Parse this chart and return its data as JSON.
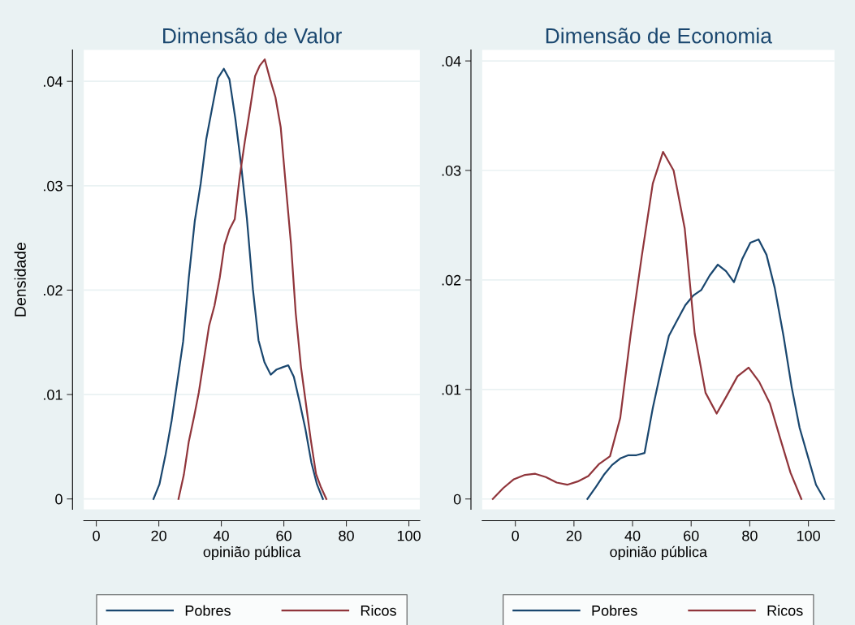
{
  "chart_data": [
    {
      "type": "line",
      "title": "Dimensão de Valor",
      "xlabel": "opinião pública",
      "ylabel": "Densidade",
      "xlim": [
        -4,
        103.5
      ],
      "ylim": [
        -0.001,
        0.043
      ],
      "xticks": [
        0,
        20,
        40,
        60,
        80,
        100
      ],
      "yticks": [
        {
          "value": 0,
          "label": "0"
        },
        {
          "value": 0.01,
          "label": ".01"
        },
        {
          "value": 0.02,
          "label": ".02"
        },
        {
          "value": 0.03,
          "label": ".03"
        },
        {
          "value": 0.04,
          "label": ".04"
        }
      ],
      "grid": "y",
      "legend": "bottom",
      "series": [
        {
          "name": "Pobres",
          "color": "#1a476f",
          "x": [
            18.3,
            20.2,
            22.2,
            24.1,
            25.9,
            27.8,
            29.6,
            31.5,
            33.4,
            35.2,
            37.1,
            38.9,
            40.8,
            42.6,
            44.5,
            46.3,
            48.2,
            50.1,
            51.9,
            53.8,
            55.8,
            57.7,
            59.5,
            61.4,
            63.2,
            65.1,
            66.9,
            68.8,
            70.6,
            72.5
          ],
          "values": [
            0,
            0.0014,
            0.0043,
            0.0075,
            0.0112,
            0.0151,
            0.0212,
            0.0266,
            0.0302,
            0.0345,
            0.0375,
            0.0403,
            0.0412,
            0.0402,
            0.0364,
            0.0321,
            0.0268,
            0.0201,
            0.0152,
            0.0131,
            0.0119,
            0.0124,
            0.0126,
            0.0128,
            0.0117,
            0.0092,
            0.0067,
            0.0035,
            0.0014,
            0
          ]
        },
        {
          "name": "Ricos",
          "color": "#90353b",
          "x": [
            26.3,
            28.0,
            29.6,
            31.3,
            32.8,
            34.5,
            36.1,
            37.8,
            39.5,
            41.0,
            42.6,
            44.3,
            45.9,
            47.5,
            49.1,
            50.8,
            52.3,
            53.9,
            55.6,
            57.3,
            59.0,
            60.6,
            62.3,
            63.8,
            65.5,
            66.9,
            68.6,
            70.3,
            71.9,
            73.6
          ],
          "values": [
            0,
            0.0023,
            0.0055,
            0.0079,
            0.0102,
            0.0135,
            0.0166,
            0.0185,
            0.0212,
            0.0243,
            0.0258,
            0.0268,
            0.0309,
            0.0342,
            0.0372,
            0.0405,
            0.0415,
            0.0421,
            0.0402,
            0.0385,
            0.0356,
            0.0301,
            0.0244,
            0.0178,
            0.0126,
            0.0095,
            0.0057,
            0.0024,
            0.0011,
            0
          ]
        }
      ]
    },
    {
      "type": "line",
      "title": "Dimensão de Economia",
      "xlabel": "opinião pública",
      "xlim": [
        -11.3,
        108.9
      ],
      "ylim": [
        -0.00095,
        0.041
      ],
      "xticks": [
        0,
        20,
        40,
        60,
        80,
        100
      ],
      "yticks": [
        {
          "value": 0,
          "label": "0"
        },
        {
          "value": 0.01,
          "label": ".01"
        },
        {
          "value": 0.02,
          "label": ".02"
        },
        {
          "value": 0.03,
          "label": ".03"
        },
        {
          "value": 0.04,
          "label": ".04"
        }
      ],
      "grid": "y",
      "legend": "bottom",
      "series": [
        {
          "name": "Pobres",
          "color": "#1a476f",
          "x": [
            24.6,
            27.5,
            30.2,
            33.0,
            35.8,
            38.6,
            41.3,
            44.1,
            46.9,
            49.9,
            52.4,
            55.2,
            58.0,
            60.8,
            63.5,
            66.3,
            69.1,
            71.9,
            74.6,
            77.4,
            80.2,
            83.0,
            85.7,
            88.5,
            91.5,
            94.3,
            97.0,
            99.8,
            102.6,
            105.4
          ],
          "values": [
            0,
            0.0011,
            0.0022,
            0.0031,
            0.0037,
            0.004,
            0.004,
            0.0042,
            0.0083,
            0.012,
            0.0149,
            0.0163,
            0.0177,
            0.0186,
            0.0191,
            0.0204,
            0.0214,
            0.0208,
            0.0198,
            0.0219,
            0.0234,
            0.0237,
            0.0223,
            0.0193,
            0.0149,
            0.0102,
            0.0065,
            0.0039,
            0.0013,
            0
          ]
        },
        {
          "name": "Ricos",
          "color": "#90353b",
          "x": [
            -7.7,
            -4.1,
            -0.5,
            3.3,
            6.8,
            10.4,
            14.1,
            17.7,
            21.3,
            24.9,
            28.6,
            32.3,
            35.8,
            39.3,
            43.1,
            46.9,
            50.4,
            54.0,
            57.8,
            61.2,
            64.9,
            68.7,
            72.1,
            75.8,
            79.6,
            83.2,
            86.9,
            90.3,
            93.9,
            97.6
          ],
          "values": [
            0,
            0.001,
            0.0018,
            0.0022,
            0.0023,
            0.002,
            0.0015,
            0.0013,
            0.0016,
            0.0021,
            0.0032,
            0.0039,
            0.0074,
            0.0149,
            0.0221,
            0.0288,
            0.0317,
            0.03,
            0.0247,
            0.0151,
            0.0097,
            0.0078,
            0.0094,
            0.0112,
            0.012,
            0.0107,
            0.0087,
            0.0056,
            0.0024,
            0
          ]
        }
      ]
    }
  ]
}
